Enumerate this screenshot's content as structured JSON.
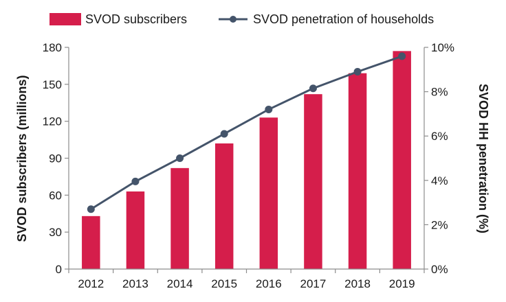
{
  "chart_data": {
    "type": "bar",
    "categories": [
      "2012",
      "2013",
      "2014",
      "2015",
      "2016",
      "2017",
      "2018",
      "2019"
    ],
    "series": [
      {
        "name": "SVOD subscribers",
        "type": "bar",
        "axis": "left",
        "color": "#d51e4b",
        "values": [
          43,
          63,
          82,
          102,
          123,
          142,
          159,
          177
        ]
      },
      {
        "name": "SVOD penetration of households",
        "type": "line",
        "axis": "right",
        "color": "#44546a",
        "values": [
          2.7,
          3.95,
          5.0,
          6.1,
          7.2,
          8.15,
          8.9,
          9.6
        ]
      }
    ],
    "ylabel": "SVOD subscribers (millions)",
    "y2label": "SVOD HH penetration (%)",
    "ylim": [
      0,
      180
    ],
    "yticks": [
      "0",
      "30",
      "60",
      "90",
      "120",
      "150",
      "180"
    ],
    "y2lim": [
      0,
      10
    ],
    "y2ticks": [
      "0%",
      "2%",
      "4%",
      "6%",
      "8%",
      "10%"
    ],
    "grid": false,
    "legend": "top"
  }
}
